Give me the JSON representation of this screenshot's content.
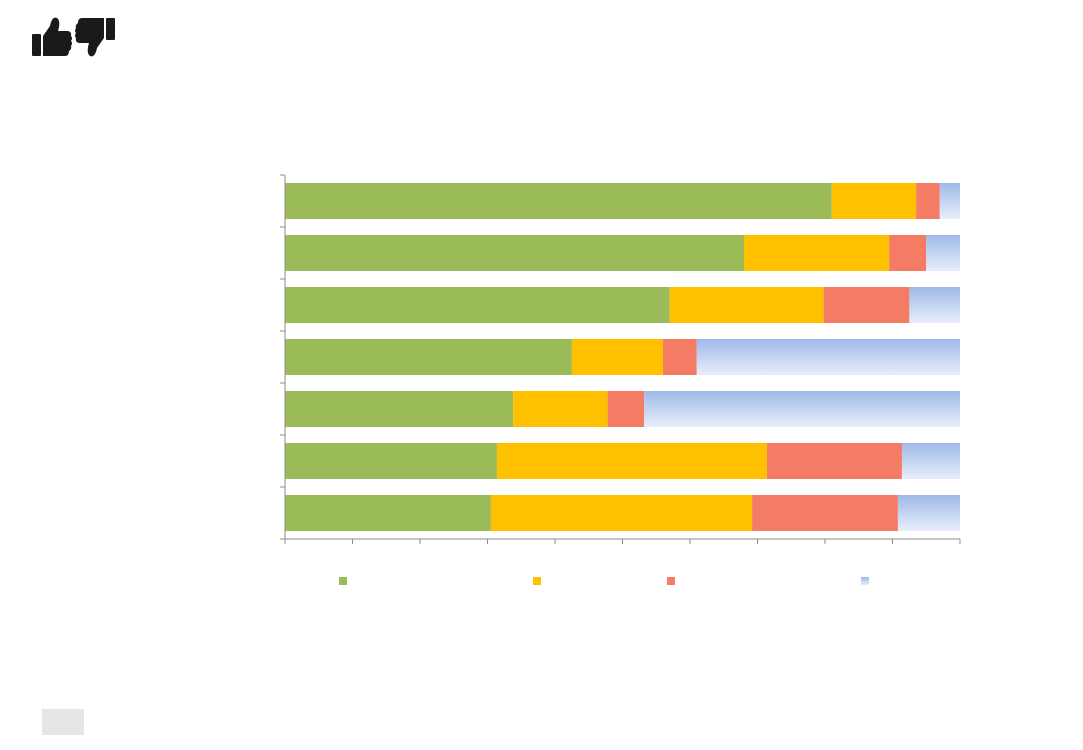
{
  "icons": [
    {
      "name": "thumbs-up-icon",
      "color": "#1a1a1a"
    },
    {
      "name": "thumbs-down-icon",
      "color": "#1a1a1a"
    }
  ],
  "chart_data": {
    "type": "bar",
    "orientation": "horizontal",
    "stacked": true,
    "normalized": true,
    "title": "",
    "xlabel": "",
    "ylabel": "",
    "xlim": [
      0,
      1
    ],
    "x_tick_count": 10,
    "legend_position": "bottom",
    "categories": [
      "",
      "",
      "",
      "",
      "",
      "",
      ""
    ],
    "series": [
      {
        "color": "#9bbb59",
        "values": [
          0.81,
          0.68,
          0.57,
          0.425,
          0.338,
          0.314,
          0.305
        ]
      },
      {
        "color": "#ffc000",
        "values": [
          0.125,
          0.215,
          0.228,
          0.135,
          0.14,
          0.4,
          0.387
        ]
      },
      {
        "color": "#f47c64",
        "values": [
          0.035,
          0.055,
          0.127,
          0.05,
          0.054,
          0.2,
          0.216
        ]
      },
      {
        "color": "#b4c7e7",
        "values": [
          0.03,
          0.05,
          0.075,
          0.39,
          0.468,
          0.086,
          0.092
        ]
      }
    ]
  }
}
